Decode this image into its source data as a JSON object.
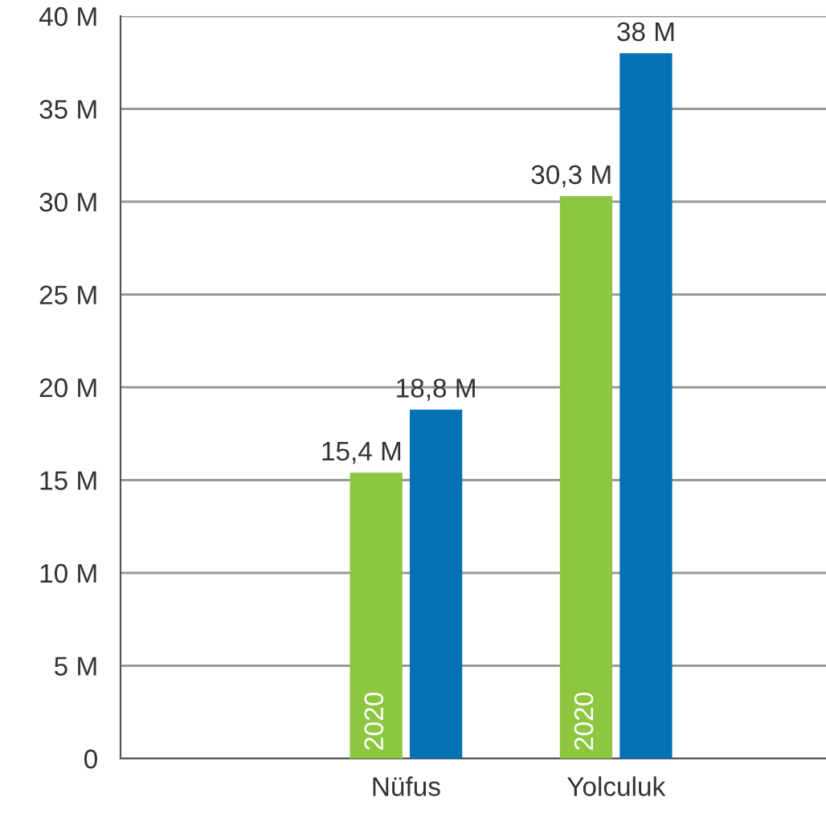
{
  "chart_data": {
    "type": "bar",
    "categories": [
      null,
      "Nüfus",
      "Yolculuk"
    ],
    "series": [
      {
        "name": "2020",
        "color": "#8dc63f",
        "values": [
          null,
          15.4,
          30.3
        ],
        "value_labels": [
          null,
          "15,4 M",
          "30,3 M"
        ]
      },
      {
        "color": "#0571b5",
        "values": [
          null,
          18.8,
          38
        ],
        "value_labels": [
          null,
          "18,8 M",
          "38 M"
        ]
      }
    ],
    "ylim": [
      0,
      40
    ],
    "yticks": [
      {
        "value": 0,
        "label": "0"
      },
      {
        "value": 5,
        "label": "5 M"
      },
      {
        "value": 10,
        "label": "10 M"
      },
      {
        "value": 15,
        "label": "15 M"
      },
      {
        "value": 20,
        "label": "20 M"
      },
      {
        "value": 25,
        "label": "25 M"
      },
      {
        "value": 30,
        "label": "30 M"
      },
      {
        "value": 35,
        "label": "35 M"
      },
      {
        "value": 40,
        "label": "40 M"
      }
    ],
    "grid": "y",
    "legend": false
  }
}
